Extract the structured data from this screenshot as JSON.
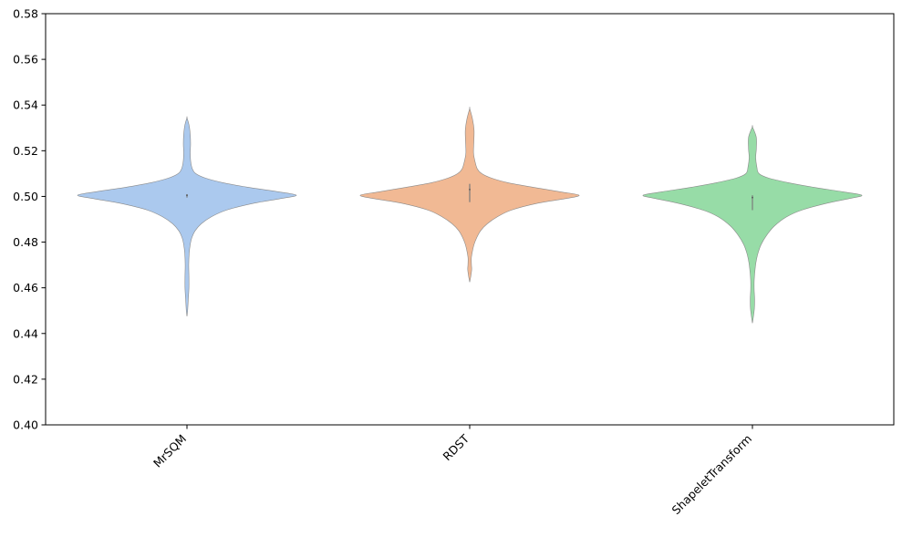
{
  "chart_data": {
    "type": "violin",
    "title": "",
    "xlabel": "",
    "ylabel": "",
    "ylim": [
      0.4,
      0.58
    ],
    "yticks": [
      "0.40",
      "0.42",
      "0.44",
      "0.46",
      "0.48",
      "0.50",
      "0.52",
      "0.54",
      "0.56",
      "0.58"
    ],
    "grid": false,
    "legend": "none",
    "categories": [
      "MrSQM",
      "RDST",
      "ShapeletTransform"
    ],
    "series": [
      {
        "category": "MrSQM",
        "color": "#abc9ee",
        "profile": [
          [
            0.4475,
            0.0
          ],
          [
            0.45,
            0.006
          ],
          [
            0.455,
            0.012
          ],
          [
            0.46,
            0.018
          ],
          [
            0.465,
            0.018
          ],
          [
            0.47,
            0.016
          ],
          [
            0.475,
            0.02
          ],
          [
            0.479,
            0.03
          ],
          [
            0.482,
            0.045
          ],
          [
            0.485,
            0.075
          ],
          [
            0.488,
            0.13
          ],
          [
            0.491,
            0.22
          ],
          [
            0.494,
            0.36
          ],
          [
            0.497,
            0.61
          ],
          [
            0.499,
            0.85
          ],
          [
            0.5005,
            1.0
          ],
          [
            0.502,
            0.84
          ],
          [
            0.504,
            0.56
          ],
          [
            0.506,
            0.33
          ],
          [
            0.508,
            0.17
          ],
          [
            0.51,
            0.08
          ],
          [
            0.512,
            0.05
          ],
          [
            0.515,
            0.035
          ],
          [
            0.519,
            0.03
          ],
          [
            0.523,
            0.033
          ],
          [
            0.527,
            0.03
          ],
          [
            0.531,
            0.02
          ],
          [
            0.5345,
            0.0
          ]
        ],
        "median": 0.5005,
        "iqr": [
          0.4995,
          0.501
        ]
      },
      {
        "category": "RDST",
        "color": "#f1b994",
        "profile": [
          [
            0.4625,
            0.0
          ],
          [
            0.465,
            0.01
          ],
          [
            0.468,
            0.018
          ],
          [
            0.47,
            0.016
          ],
          [
            0.473,
            0.015
          ],
          [
            0.476,
            0.025
          ],
          [
            0.479,
            0.04
          ],
          [
            0.482,
            0.065
          ],
          [
            0.485,
            0.1
          ],
          [
            0.488,
            0.16
          ],
          [
            0.491,
            0.25
          ],
          [
            0.494,
            0.38
          ],
          [
            0.497,
            0.62
          ],
          [
            0.499,
            0.87
          ],
          [
            0.5005,
            1.0
          ],
          [
            0.502,
            0.83
          ],
          [
            0.504,
            0.58
          ],
          [
            0.506,
            0.35
          ],
          [
            0.508,
            0.2
          ],
          [
            0.51,
            0.11
          ],
          [
            0.512,
            0.07
          ],
          [
            0.515,
            0.05
          ],
          [
            0.519,
            0.035
          ],
          [
            0.524,
            0.038
          ],
          [
            0.529,
            0.04
          ],
          [
            0.534,
            0.025
          ],
          [
            0.5385,
            0.0
          ]
        ],
        "median": 0.503,
        "iqr": [
          0.4975,
          0.5055
        ]
      },
      {
        "category": "ShapeletTransform",
        "color": "#97dca7",
        "profile": [
          [
            0.4445,
            0.0
          ],
          [
            0.447,
            0.008
          ],
          [
            0.451,
            0.018
          ],
          [
            0.455,
            0.02
          ],
          [
            0.459,
            0.016
          ],
          [
            0.463,
            0.016
          ],
          [
            0.467,
            0.022
          ],
          [
            0.471,
            0.032
          ],
          [
            0.475,
            0.05
          ],
          [
            0.479,
            0.08
          ],
          [
            0.483,
            0.13
          ],
          [
            0.487,
            0.2
          ],
          [
            0.491,
            0.31
          ],
          [
            0.494,
            0.45
          ],
          [
            0.497,
            0.68
          ],
          [
            0.499,
            0.88
          ],
          [
            0.5005,
            1.0
          ],
          [
            0.502,
            0.83
          ],
          [
            0.504,
            0.56
          ],
          [
            0.506,
            0.33
          ],
          [
            0.508,
            0.15
          ],
          [
            0.51,
            0.06
          ],
          [
            0.513,
            0.04
          ],
          [
            0.517,
            0.03
          ],
          [
            0.521,
            0.036
          ],
          [
            0.526,
            0.035
          ],
          [
            0.5305,
            0.0
          ]
        ],
        "median": 0.4995,
        "iqr": [
          0.494,
          0.5005
        ]
      }
    ]
  }
}
